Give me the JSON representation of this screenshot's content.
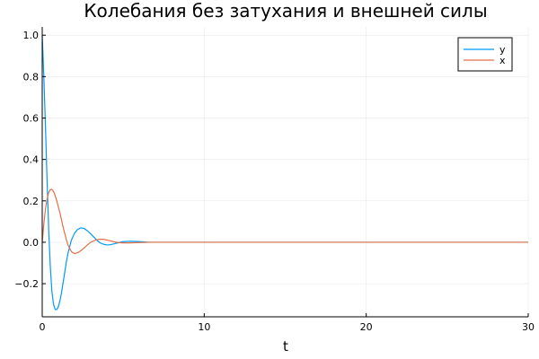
{
  "chart_data": {
    "type": "line",
    "title": "Колебания без затухания и внешней силы",
    "xlabel": "t",
    "ylabel": "",
    "xlim": [
      0,
      30
    ],
    "ylim": [
      -0.36,
      1.04
    ],
    "xticks": [
      0,
      10,
      20,
      30
    ],
    "xtick_labels": [
      "0",
      "10",
      "20",
      "30"
    ],
    "yticks": [
      -0.2,
      0.0,
      0.2,
      0.4,
      0.6,
      0.8,
      1.0
    ],
    "ytick_labels": [
      "−0.2",
      "0.0",
      "0.2",
      "0.4",
      "0.6",
      "0.8",
      "1.0"
    ],
    "grid": true,
    "legend_position": "top-right",
    "series": [
      {
        "name": "y",
        "color": "#009af9",
        "x": [
          0,
          0.1,
          0.2,
          0.3,
          0.4,
          0.5,
          0.6,
          0.7,
          0.8,
          0.9,
          1.0,
          1.1,
          1.2,
          1.3,
          1.4,
          1.5,
          1.6,
          1.8,
          2.0,
          2.2,
          2.4,
          2.6,
          2.8,
          3.0,
          3.2,
          3.4,
          3.6,
          3.8,
          4.0,
          4.2,
          4.4,
          4.6,
          4.8,
          5.0,
          5.4,
          5.8,
          6.2,
          6.6,
          7.0,
          8.0,
          10.0,
          15.0,
          20.0,
          25.0,
          30.0
        ],
        "y": [
          1.0,
          0.8,
          0.56,
          0.3,
          0.06,
          -0.12,
          -0.24,
          -0.3,
          -0.325,
          -0.325,
          -0.31,
          -0.28,
          -0.24,
          -0.19,
          -0.14,
          -0.09,
          -0.05,
          0.01,
          0.045,
          0.063,
          0.07,
          0.066,
          0.055,
          0.04,
          0.024,
          0.008,
          -0.004,
          -0.01,
          -0.013,
          -0.012,
          -0.008,
          -0.004,
          0.0,
          0.003,
          0.005,
          0.004,
          0.002,
          0.0,
          0.0,
          0.0,
          0.0,
          0.0,
          0.0,
          0.0,
          0.0
        ]
      },
      {
        "name": "x",
        "color": "#e26f46",
        "x": [
          0,
          0.1,
          0.2,
          0.3,
          0.4,
          0.5,
          0.6,
          0.7,
          0.8,
          0.9,
          1.0,
          1.1,
          1.2,
          1.3,
          1.4,
          1.5,
          1.6,
          1.8,
          2.0,
          2.2,
          2.4,
          2.6,
          2.8,
          3.0,
          3.2,
          3.4,
          3.6,
          3.8,
          4.0,
          4.2,
          4.4,
          4.6,
          4.8,
          5.0,
          5.4,
          5.8,
          6.2,
          6.6,
          7.0,
          8.0,
          10.0,
          15.0,
          20.0,
          25.0,
          30.0
        ],
        "y": [
          0.0,
          0.09,
          0.16,
          0.21,
          0.24,
          0.255,
          0.255,
          0.245,
          0.225,
          0.2,
          0.17,
          0.14,
          0.105,
          0.07,
          0.04,
          0.01,
          -0.015,
          -0.045,
          -0.055,
          -0.05,
          -0.04,
          -0.026,
          -0.012,
          0.0,
          0.008,
          0.013,
          0.015,
          0.014,
          0.011,
          0.007,
          0.003,
          0.0,
          -0.002,
          -0.003,
          -0.003,
          -0.002,
          -0.001,
          0.0,
          0.0,
          0.0,
          0.0,
          0.0,
          0.0,
          0.0,
          0.0
        ]
      }
    ]
  }
}
